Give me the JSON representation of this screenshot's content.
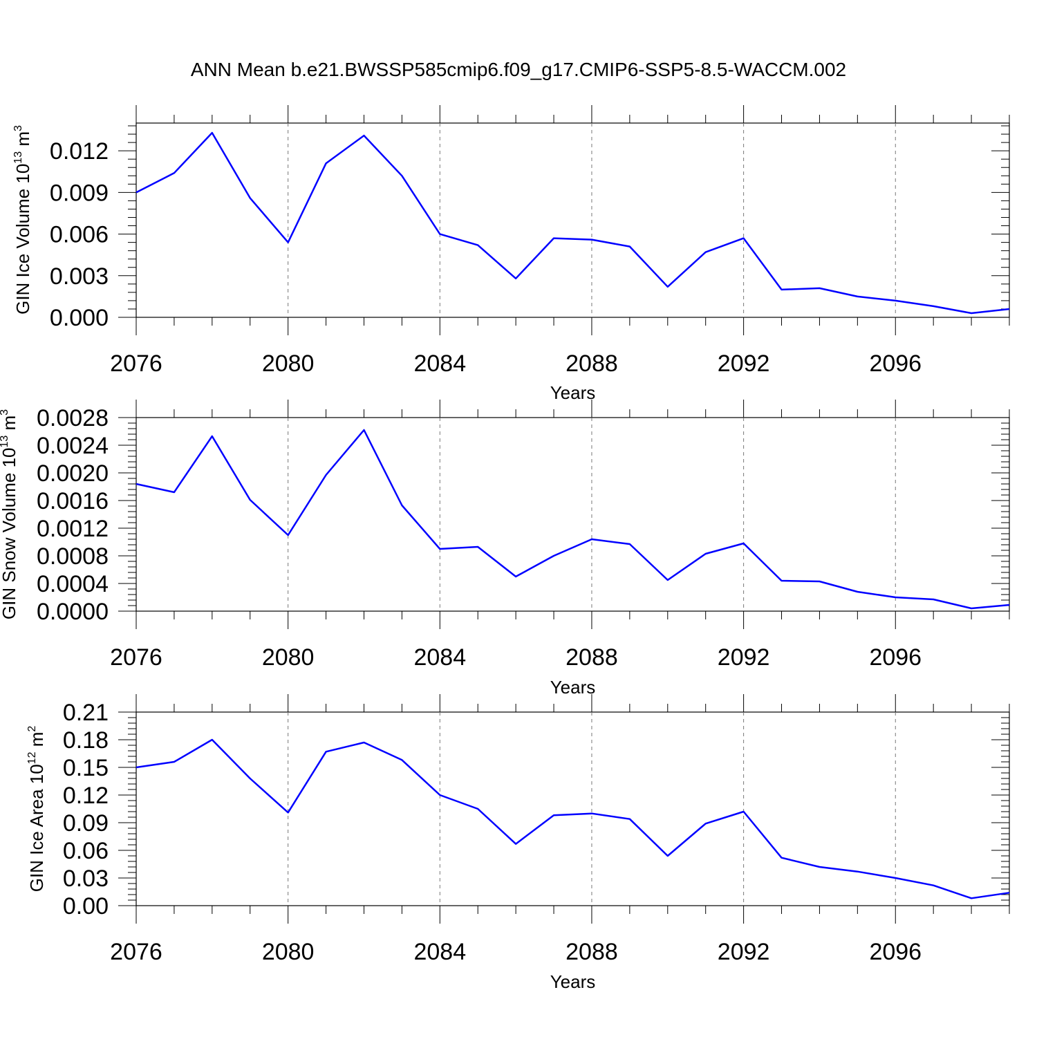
{
  "title": "ANN Mean b.e21.BWSSP585cmip6.f09_g17.CMIP6-SSP5-8.5-WACCM.002",
  "chart_data": [
    {
      "type": "line",
      "ylabel": {
        "text": "GIN Ice Volume 10",
        "exp": "13",
        "unit": " m",
        "unit_exp": "3"
      },
      "xlabel": "Years",
      "xticks": [
        "2076",
        "2080",
        "2084",
        "2088",
        "2092",
        "2096"
      ],
      "yticks": [
        "0.000",
        "0.003",
        "0.006",
        "0.009",
        "0.012"
      ],
      "xlim": [
        2076,
        2099
      ],
      "ylim": [
        0,
        0.014
      ],
      "grid": "vertical dashed at major x ticks",
      "series": [
        {
          "color": "#0000ff",
          "x": [
            2076,
            2077,
            2078,
            2079,
            2080,
            2081,
            2082,
            2083,
            2084,
            2085,
            2086,
            2087,
            2088,
            2089,
            2090,
            2091,
            2092,
            2093,
            2094,
            2095,
            2096,
            2097,
            2098,
            2099
          ],
          "values": [
            0.009,
            0.0104,
            0.0133,
            0.0086,
            0.0054,
            0.0111,
            0.0131,
            0.0102,
            0.006,
            0.0052,
            0.0028,
            0.0057,
            0.0056,
            0.0051,
            0.0022,
            0.0047,
            0.0057,
            0.002,
            0.0021,
            0.0015,
            0.0012,
            0.0008,
            0.0003,
            0.0006
          ]
        }
      ]
    },
    {
      "type": "line",
      "ylabel": {
        "text": "GIN Snow Volume 10",
        "exp": "13",
        "unit": " m",
        "unit_exp": "3"
      },
      "xlabel": "Years",
      "xticks": [
        "2076",
        "2080",
        "2084",
        "2088",
        "2092",
        "2096"
      ],
      "yticks": [
        "0.0000",
        "0.0004",
        "0.0008",
        "0.0012",
        "0.0016",
        "0.0020",
        "0.0024",
        "0.0028"
      ],
      "xlim": [
        2076,
        2099
      ],
      "ylim": [
        0,
        0.0028
      ],
      "grid": "vertical dashed at major x ticks",
      "series": [
        {
          "color": "#0000ff",
          "x": [
            2076,
            2077,
            2078,
            2079,
            2080,
            2081,
            2082,
            2083,
            2084,
            2085,
            2086,
            2087,
            2088,
            2089,
            2090,
            2091,
            2092,
            2093,
            2094,
            2095,
            2096,
            2097,
            2098,
            2099
          ],
          "values": [
            0.00184,
            0.00172,
            0.00253,
            0.00161,
            0.0011,
            0.00197,
            0.00262,
            0.00153,
            0.0009,
            0.00093,
            0.0005,
            0.0008,
            0.00104,
            0.00097,
            0.00045,
            0.00083,
            0.00098,
            0.00044,
            0.00043,
            0.00028,
            0.0002,
            0.00017,
            4e-05,
            9e-05
          ]
        }
      ]
    },
    {
      "type": "line",
      "ylabel": {
        "text": "GIN Ice Area 10",
        "exp": "12",
        "unit": " m",
        "unit_exp": "2"
      },
      "xlabel": "Years",
      "xticks": [
        "2076",
        "2080",
        "2084",
        "2088",
        "2092",
        "2096"
      ],
      "yticks": [
        "0.00",
        "0.03",
        "0.06",
        "0.09",
        "0.12",
        "0.15",
        "0.18",
        "0.21"
      ],
      "xlim": [
        2076,
        2099
      ],
      "ylim": [
        0,
        0.21
      ],
      "grid": "vertical dashed at major x ticks",
      "series": [
        {
          "color": "#0000ff",
          "x": [
            2076,
            2077,
            2078,
            2079,
            2080,
            2081,
            2082,
            2083,
            2084,
            2085,
            2086,
            2087,
            2088,
            2089,
            2090,
            2091,
            2092,
            2093,
            2094,
            2095,
            2096,
            2097,
            2098,
            2099
          ],
          "values": [
            0.15,
            0.156,
            0.18,
            0.138,
            0.101,
            0.167,
            0.177,
            0.158,
            0.12,
            0.105,
            0.067,
            0.098,
            0.1,
            0.094,
            0.054,
            0.089,
            0.102,
            0.052,
            0.042,
            0.037,
            0.03,
            0.022,
            0.008,
            0.014
          ]
        }
      ]
    }
  ]
}
